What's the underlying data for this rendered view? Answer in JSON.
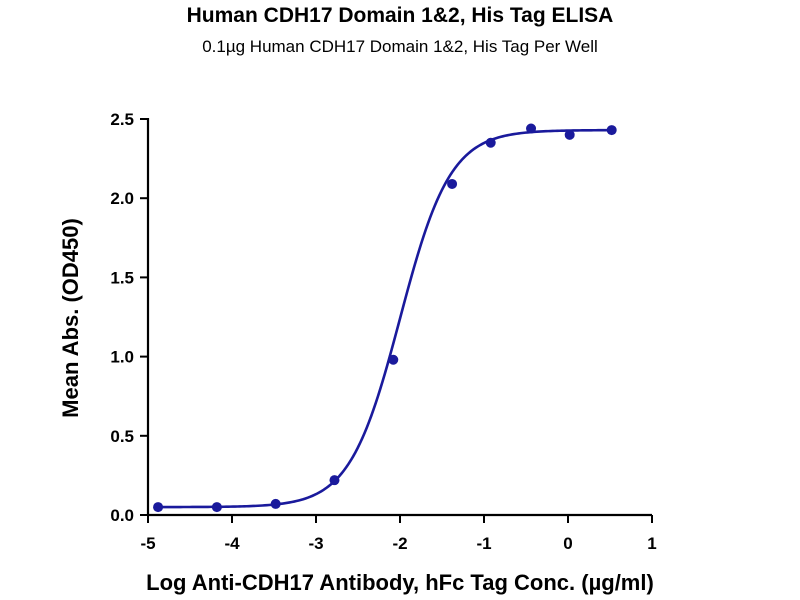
{
  "chart_data": {
    "type": "scatter",
    "title": "Human CDH17 Domain 1&2, His Tag ELISA",
    "subtitle": "0.1µg Human CDH17 Domain 1&2, His Tag Per Well",
    "xlabel": "Log Anti-CDH17 Antibody, hFc Tag Conc. (µg/ml)",
    "ylabel": "Mean Abs. (OD450)",
    "xlim": [
      -5,
      1
    ],
    "ylim": [
      0,
      2.5
    ],
    "x_ticks": [
      -5,
      -4,
      -3,
      -2,
      -1,
      0,
      1
    ],
    "x_tick_labels": [
      "-5",
      "-4",
      "-3",
      "-2",
      "-1",
      "0",
      "1"
    ],
    "y_ticks": [
      0,
      0.5,
      1.0,
      1.5,
      2.0,
      2.5
    ],
    "y_tick_labels": [
      "0.0",
      "0.5",
      "1.0",
      "1.5",
      "2.0",
      "2.5"
    ],
    "grid": false,
    "series_color": "#1a1a9c",
    "points": [
      {
        "x": -4.88,
        "y": 0.05
      },
      {
        "x": -4.18,
        "y": 0.05
      },
      {
        "x": -3.48,
        "y": 0.07
      },
      {
        "x": -2.78,
        "y": 0.22
      },
      {
        "x": -2.08,
        "y": 0.98
      },
      {
        "x": -1.38,
        "y": 2.09
      },
      {
        "x": -0.92,
        "y": 2.35
      },
      {
        "x": -0.44,
        "y": 2.44
      },
      {
        "x": 0.02,
        "y": 2.4
      },
      {
        "x": 0.52,
        "y": 2.43
      }
    ],
    "fit_curve": {
      "model": "4PL",
      "bottom": 0.05,
      "top": 2.43,
      "logEC50": -2.0,
      "hill": 1.45,
      "x_range": [
        -4.88,
        0.52
      ]
    }
  }
}
